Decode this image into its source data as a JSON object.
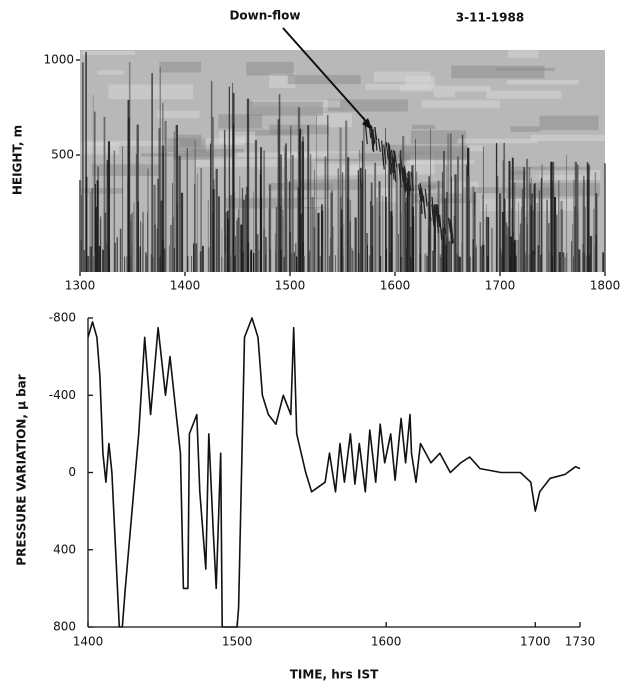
{
  "chart_data": [
    {
      "type": "echogram",
      "annotation": "Down-flow",
      "date": "3-11-1988",
      "ylabel": "HEIGHT, m",
      "xlim": [
        1300,
        1800
      ],
      "xticks": [
        1300,
        1400,
        1500,
        1600,
        1700,
        1800
      ],
      "ylim": [
        0,
        1000
      ],
      "yticks": [
        500,
        1000
      ]
    },
    {
      "type": "line",
      "xlabel": "TIME, hrs IST",
      "ylabel": "PRESSURE VARIATION, μ bar",
      "color": "#111111",
      "xlim": [
        1400,
        1730
      ],
      "xticks": [
        1400,
        1500,
        1600,
        1700,
        1730
      ],
      "ylim": [
        800,
        -800
      ],
      "yticks": [
        -800,
        -400,
        0,
        400,
        800
      ],
      "x": [
        1400,
        1403,
        1406,
        1408,
        1410,
        1412,
        1414,
        1416,
        1421,
        1423,
        1425,
        1434,
        1438,
        1442,
        1447,
        1452,
        1455,
        1462,
        1464,
        1467,
        1468,
        1473,
        1475,
        1479,
        1481,
        1484,
        1486,
        1489,
        1490,
        1500,
        1501,
        1505,
        1510,
        1514,
        1517,
        1521,
        1526,
        1531,
        1536,
        1538,
        1540,
        1546,
        1550,
        1559,
        1562,
        1566,
        1569,
        1572,
        1576,
        1579,
        1582,
        1586,
        1589,
        1593,
        1596,
        1599,
        1603,
        1606,
        1610,
        1613,
        1616,
        1617,
        1620,
        1623,
        1630,
        1636,
        1643,
        1650,
        1656,
        1663,
        1677,
        1690,
        1697,
        1700,
        1703,
        1710,
        1720,
        1727,
        1730
      ],
      "values": [
        -700,
        -780,
        -700,
        -500,
        -100,
        50,
        -150,
        0,
        800,
        800,
        600,
        -200,
        -700,
        -300,
        -750,
        -400,
        -600,
        -100,
        600,
        600,
        -200,
        -300,
        100,
        500,
        -200,
        300,
        600,
        -100,
        800,
        800,
        700,
        -700,
        -800,
        -700,
        -400,
        -300,
        -250,
        -400,
        -300,
        -750,
        -200,
        0,
        100,
        50,
        -100,
        100,
        -150,
        50,
        -200,
        60,
        -150,
        100,
        -220,
        50,
        -250,
        -50,
        -200,
        40,
        -280,
        -50,
        -300,
        -100,
        50,
        -150,
        -50,
        -100,
        0,
        -50,
        -80,
        -20,
        0,
        0,
        50,
        200,
        100,
        30,
        10,
        -30,
        -20
      ]
    }
  ]
}
